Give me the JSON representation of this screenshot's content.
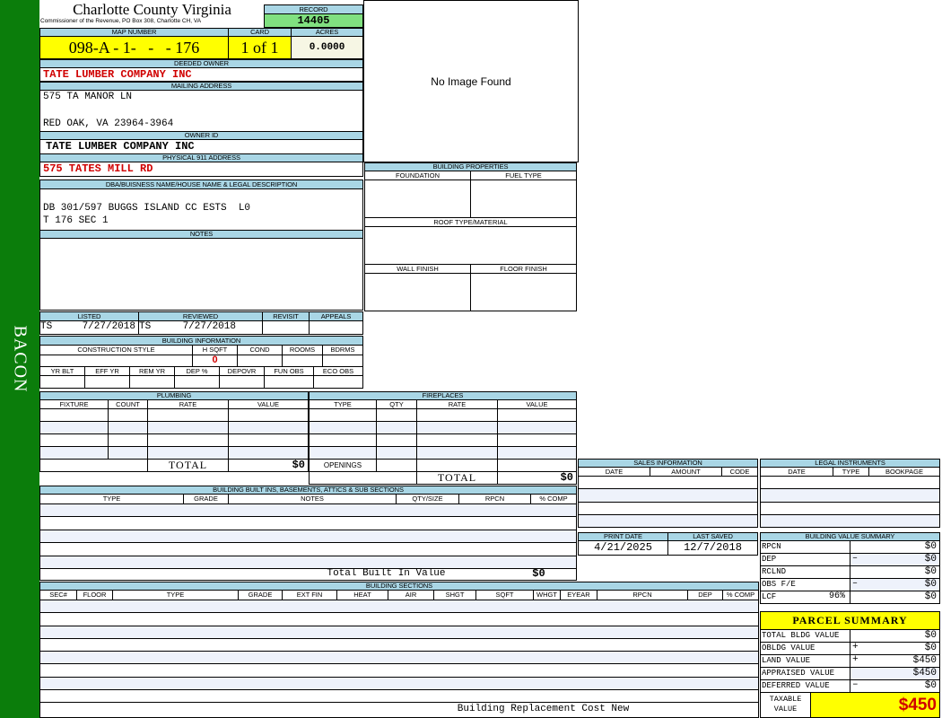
{
  "sidebar": {
    "label": "BACON"
  },
  "header": {
    "title": "Charlotte County Virginia",
    "subtitle": "Commissioner of the Revenue, PO Box 308, Charlotte CH, VA"
  },
  "record": {
    "label": "RECORD",
    "value": "14405"
  },
  "parcel": {
    "map_label": "MAP NUMBER",
    "map": "098-A - 1-   -   - 176",
    "card_label": "CARD",
    "card": "1 of 1",
    "acres_label": "ACRES",
    "acres": "0.0000"
  },
  "owner": {
    "deeded_label": "DEEDED OWNER",
    "deeded": "TATE LUMBER COMPANY INC",
    "mailing_label": "MAILING ADDRESS",
    "mailing_line1": "575 TA MANOR LN",
    "mailing_line2": "RED OAK, VA 23964-3964",
    "owner_id_label": "OWNER ID",
    "owner_id": "TATE LUMBER COMPANY INC",
    "physical_label": "PHYSICAL 911 ADDRESS",
    "physical": "575 TATES MILL RD"
  },
  "legal": {
    "label": "DBA/BUISNESS NAME/HOUSE NAME & LEGAL DESCRIPTION",
    "line1": "DB 301/597 BUGGS ISLAND CC ESTS  L0",
    "line2": "T 176 SEC 1"
  },
  "notes": {
    "label": "NOTES"
  },
  "image": {
    "text": "No Image Found"
  },
  "building_properties": {
    "label": "BUILDING PROPERTIES",
    "foundation": "FOUNDATION",
    "fuel": "FUEL TYPE",
    "roof": "ROOF TYPE/MATERIAL",
    "wall": "WALL FINISH",
    "floor": "FLOOR FINISH"
  },
  "review": {
    "headers": [
      "LISTED",
      "REVIEWED",
      "REVISIT",
      "APPEALS"
    ],
    "listed_by": "TS",
    "listed_date": "7/27/2018",
    "reviewed_by": "TS",
    "reviewed_date": "7/27/2018"
  },
  "building_info": {
    "label": "BUILDING INFORMATION",
    "headers1": [
      "CONSTRUCTION STYLE",
      "H SQFT",
      "COND",
      "ROOMS",
      "BDRMS"
    ],
    "hsqft": "0",
    "headers2": [
      "YR BLT",
      "EFF YR",
      "REM YR",
      "DEP %",
      "DEPOVR",
      "FUN OBS",
      "ECO OBS"
    ]
  },
  "plumbing": {
    "label": "PLUMBING",
    "headers": [
      "FIXTURE",
      "COUNT",
      "RATE",
      "VALUE"
    ],
    "total_label": "TOTAL",
    "total": "$0"
  },
  "fireplaces": {
    "label": "FIREPLACES",
    "headers": [
      "TYPE",
      "QTY",
      "RATE",
      "VALUE"
    ],
    "openings_label": "OPENINGS",
    "total_label": "TOTAL",
    "total": "$0"
  },
  "built_ins": {
    "label": "BUILDING BUILT INS, BASEMENTS, ATTICS & SUB SECTIONS",
    "headers": [
      "TYPE",
      "GRADE",
      "NOTES",
      "QTY/SIZE",
      "RPCN",
      "% COMP"
    ],
    "total_label": "Total Built In Value",
    "total": "$0"
  },
  "sections": {
    "label": "BUILDING SECTIONS",
    "headers": [
      "SEC#",
      "FLOOR",
      "TYPE",
      "GRADE",
      "EXT FIN",
      "HEAT",
      "AIR",
      "SHGT",
      "SQFT",
      "WHGT",
      "EYEAR",
      "RPCN",
      "DEP",
      "% COMP"
    ],
    "total_label": "Building Replacement Cost New"
  },
  "sales": {
    "label": "SALES INFORMATION",
    "headers": [
      "DATE",
      "AMOUNT",
      "CODE"
    ]
  },
  "instruments": {
    "label": "LEGAL INSTRUMENTS",
    "headers": [
      "DATE",
      "TYPE",
      "BOOKPAGE"
    ]
  },
  "dates": {
    "print_label": "PRINT DATE",
    "print": "4/21/2025",
    "saved_label": "LAST SAVED",
    "saved": "12/7/2018"
  },
  "value_summary": {
    "label": "BUILDING VALUE SUMMARY",
    "rows": [
      {
        "label": "RPCN",
        "pct": "",
        "op": "",
        "value": "$0"
      },
      {
        "label": "DEP",
        "pct": "",
        "op": "–",
        "value": "$0"
      },
      {
        "label": "RCLND",
        "pct": "",
        "op": "",
        "value": "$0"
      },
      {
        "label": "OBS F/E",
        "pct": "",
        "op": "–",
        "value": "$0"
      },
      {
        "label": "LCF",
        "pct": "96%",
        "op": "",
        "value": "$0"
      }
    ]
  },
  "parcel_summary": {
    "label": "PARCEL SUMMARY",
    "rows": [
      {
        "label": "TOTAL BLDG VALUE",
        "op": "",
        "value": "$0"
      },
      {
        "label": "OBLDG VALUE",
        "op": "+",
        "value": "$0"
      },
      {
        "label": "LAND VALUE",
        "op": "+",
        "value": "$450"
      },
      {
        "label": "APPRAISED VALUE",
        "op": "",
        "value": "$450"
      },
      {
        "label": "DEFERRED VALUE",
        "op": "–",
        "value": "$0"
      }
    ],
    "taxable_label": "TAXABLE VALUE",
    "taxable": "$450"
  },
  "colors": {
    "sidebar": "#0b7d0b",
    "label_bg": "#a9d6e5",
    "highlight": "#ffff00",
    "record_bg": "#80e080",
    "alert_text": "#d00000"
  }
}
